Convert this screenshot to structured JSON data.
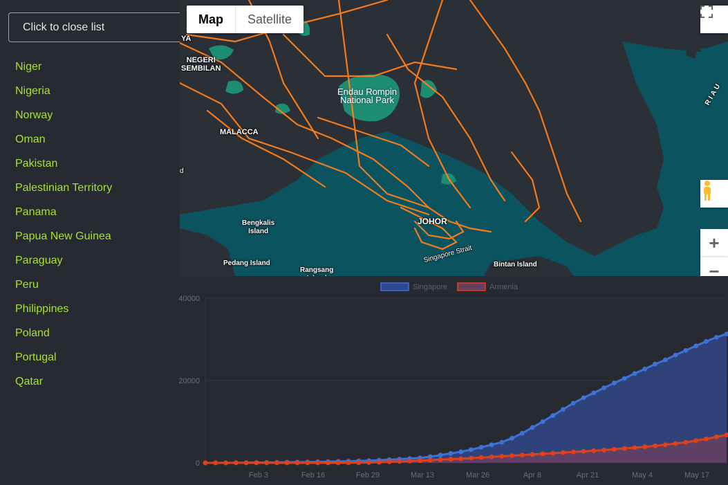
{
  "sidebar": {
    "close_label": "Click to close list",
    "countries": [
      "Niger",
      "Nigeria",
      "Norway",
      "Oman",
      "Pakistan",
      "Palestinian Territory",
      "Panama",
      "Papua New Guinea",
      "Paraguay",
      "Peru",
      "Philippines",
      "Poland",
      "Portugal",
      "Qatar"
    ],
    "link_color": "#a6e22e"
  },
  "map": {
    "type_toggle": {
      "map_label": "Map",
      "satellite_label": "Satellite",
      "selected": "Map"
    },
    "labels": {
      "ya": "YA",
      "negeri_sembilan": "NEGERI\nSEMBILAN",
      "malacca": "MALACCA",
      "endau_rompin": "Endau Rompin\nNational Park",
      "riau": "RIAU",
      "d": "d",
      "bengkalis": "Bengkalis\nIsland",
      "pedang": "Pedang Island",
      "rangsang": "Rangsang\nIsland",
      "johor": "JOHOR",
      "singapore_strait": "Singapore Strait",
      "bintan": "Bintan Island"
    },
    "controls": {
      "fullscreen_icon": "fullscreen-icon",
      "pegman_icon": "pegman-icon",
      "zoom_in": "+",
      "zoom_out": "−"
    },
    "colors": {
      "water": "#0c5360",
      "land": "#2b2f36",
      "roads": "#ff7f1a",
      "parks": "#1e8e72"
    }
  },
  "chart_data": {
    "type": "area",
    "x_tick_labels": [
      "Feb 3",
      "Feb 16",
      "Feb 29",
      "Mar 13",
      "Mar 26",
      "Apr 8",
      "Apr 21",
      "May 4",
      "May 17"
    ],
    "ylim": [
      0,
      40000
    ],
    "y_ticks": [
      0,
      20000,
      40000
    ],
    "legend_position": "top",
    "series": [
      {
        "name": "Singapore",
        "color": "#3d72d6",
        "fill": "#32488c",
        "values": [
          0,
          10,
          20,
          40,
          60,
          80,
          100,
          130,
          160,
          190,
          220,
          260,
          300,
          350,
          400,
          470,
          550,
          650,
          780,
          900,
          1050,
          1200,
          1500,
          1900,
          2300,
          2700,
          3200,
          3800,
          4400,
          5000,
          6000,
          7200,
          8600,
          10000,
          11500,
          13000,
          14500,
          15800,
          17000,
          18200,
          19400,
          20500,
          21700,
          22800,
          24000,
          25000,
          26200,
          27300,
          28400,
          29500,
          30500,
          31300
        ]
      },
      {
        "name": "Armenia",
        "color": "#e0401a",
        "fill": "#6a4060",
        "values": [
          0,
          0,
          0,
          0,
          0,
          0,
          0,
          0,
          0,
          0,
          0,
          0,
          0,
          0,
          5,
          30,
          80,
          150,
          250,
          350,
          450,
          550,
          650,
          800,
          900,
          1000,
          1150,
          1300,
          1450,
          1600,
          1750,
          1900,
          2050,
          2200,
          2350,
          2500,
          2650,
          2800,
          2950,
          3100,
          3300,
          3500,
          3700,
          3900,
          4150,
          4400,
          4700,
          5000,
          5400,
          5800,
          6300,
          6800
        ]
      }
    ]
  }
}
